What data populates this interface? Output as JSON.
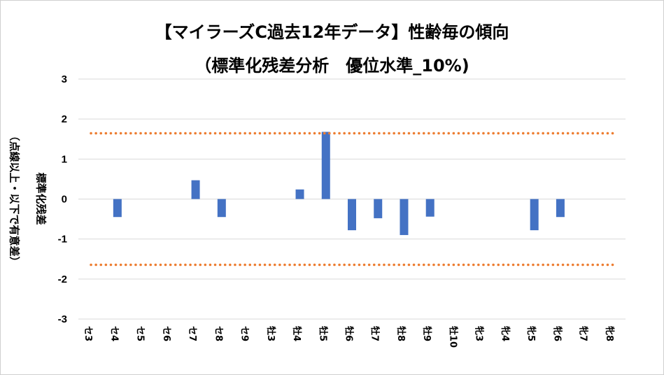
{
  "chart_data": {
    "type": "bar",
    "title": "【マイラーズC過去12年データ】性齢毎の傾向",
    "subtitle": "（標準化残差分析　優位水準_10%)",
    "ylabel": "標準化残差",
    "ylabel_note": "（点線以上・以下で有意差）",
    "xlabel": "",
    "ylim": [
      -3,
      3
    ],
    "yticks": [
      3,
      2,
      1,
      0,
      -1,
      -2,
      -3
    ],
    "grid": true,
    "categories": [
      "セ3",
      "セ4",
      "セ5",
      "セ6",
      "セ7",
      "セ8",
      "セ9",
      "牡3",
      "牡4",
      "牡5",
      "牡6",
      "牡7",
      "牡8",
      "牡9",
      "牡10",
      "牝3",
      "牝4",
      "牝5",
      "牝6",
      "牝7",
      "牝8"
    ],
    "values": [
      0,
      -0.45,
      0,
      0,
      0.47,
      -0.45,
      0,
      0,
      0.24,
      1.68,
      -0.78,
      -0.48,
      -0.9,
      -0.44,
      0,
      0,
      0,
      -0.78,
      -0.45,
      0,
      0
    ],
    "threshold_lines": [
      1.645,
      -1.645
    ],
    "colors": {
      "bar": "#4472c4",
      "threshold": "#ed7d31",
      "grid": "#d9d9d9"
    }
  }
}
